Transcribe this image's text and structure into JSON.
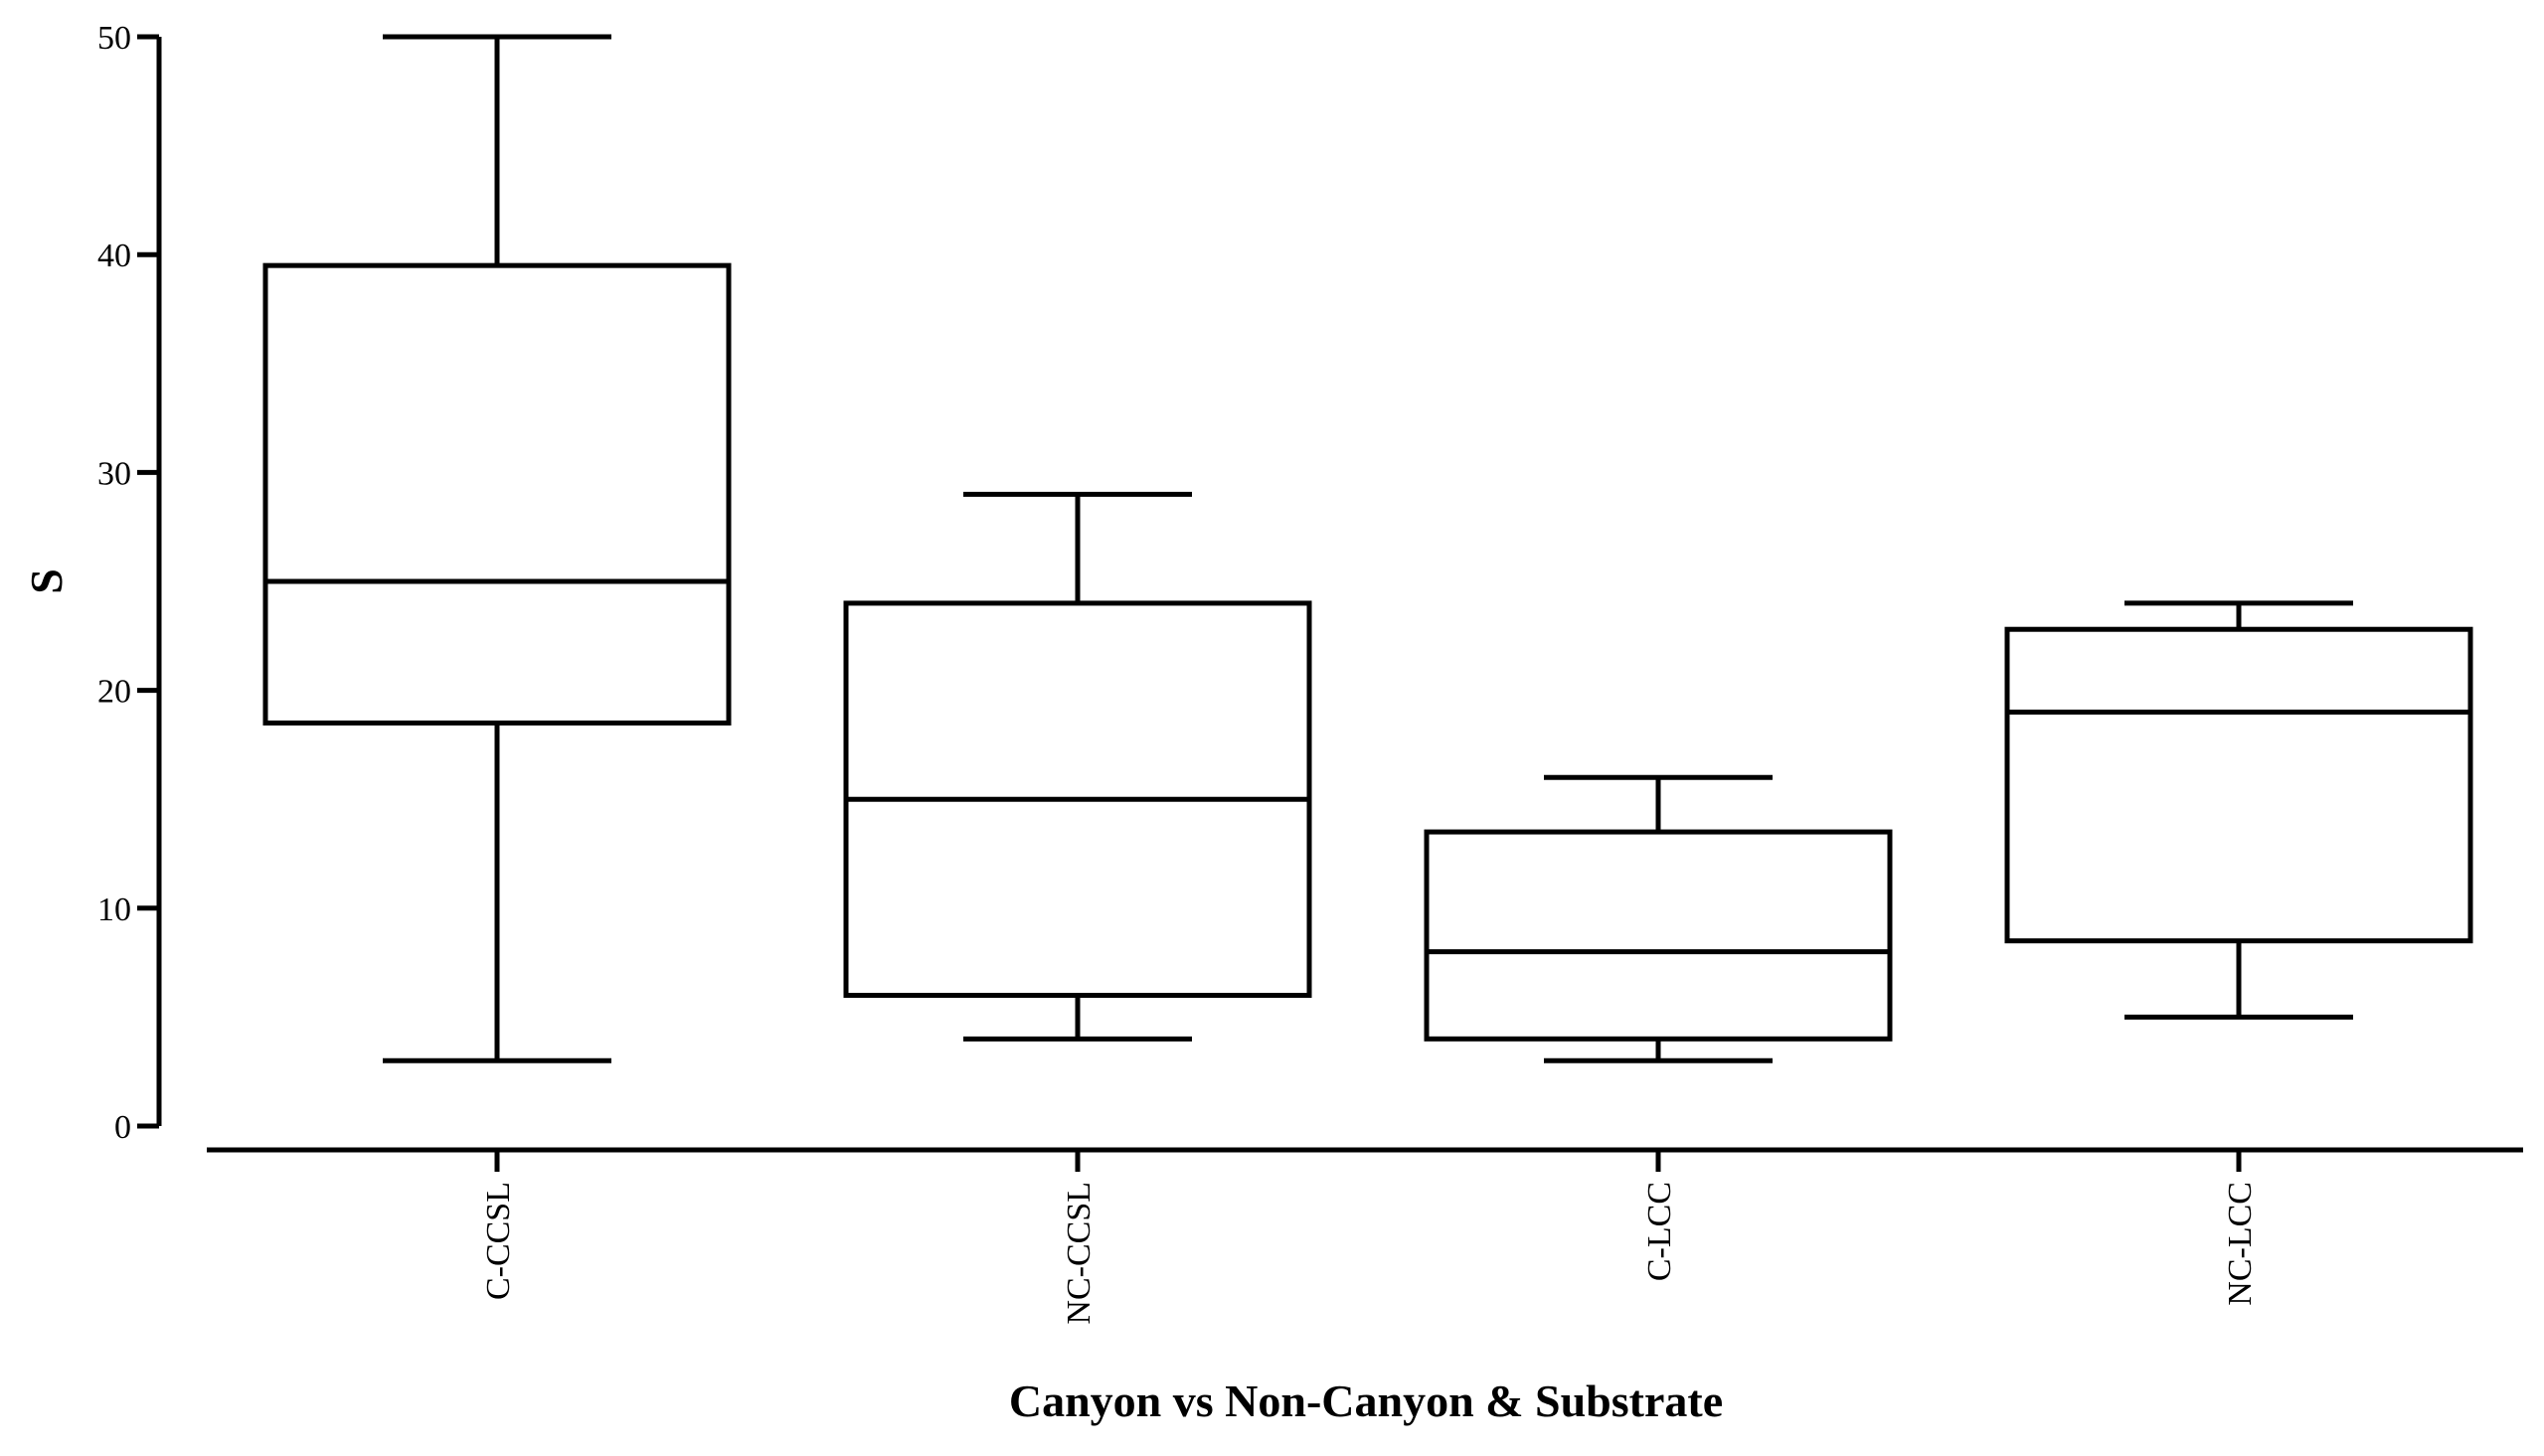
{
  "chart_data": {
    "type": "box",
    "title": "",
    "xlabel": "Canyon vs Non-Canyon & Substrate",
    "ylabel": "S",
    "ylim": [
      0,
      50
    ],
    "yticks": [
      0,
      10,
      20,
      30,
      40,
      50
    ],
    "ytick_labels": [
      "0",
      "10",
      "20",
      "30",
      "40",
      "50"
    ],
    "grid": false,
    "legend": "none",
    "categories": [
      "C-CCSL",
      "NC-CCSL",
      "C-LCC",
      "NC-LCC"
    ],
    "boxes": [
      {
        "label": "C-CCSL",
        "min": 3,
        "q1": 18.5,
        "median": 25,
        "q3": 39.5,
        "max": 50
      },
      {
        "label": "NC-CCSL",
        "min": 4,
        "q1": 6,
        "median": 15,
        "q3": 24,
        "max": 29
      },
      {
        "label": "C-LCC",
        "min": 3,
        "q1": 4,
        "median": 8,
        "q3": 13.5,
        "max": 16
      },
      {
        "label": "NC-LCC",
        "min": 5,
        "q1": 8.5,
        "median": 19,
        "q3": 22.8,
        "max": 24
      }
    ],
    "colors": {
      "line": "#000000",
      "fill": "#ffffff",
      "background": "#ffffff"
    }
  }
}
